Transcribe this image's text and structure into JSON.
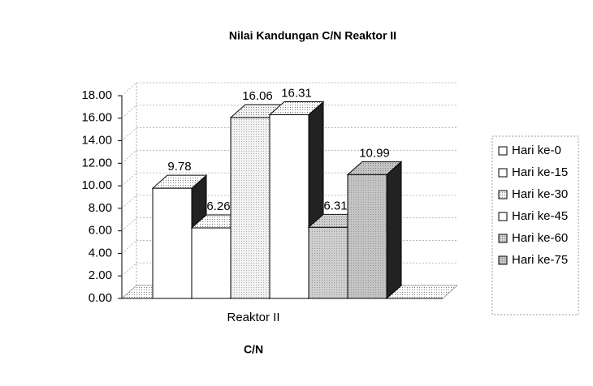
{
  "chart_data": {
    "type": "bar3d",
    "title": "Nilai Kandungan C/N Reaktor II",
    "x_label": "C/N",
    "categories": [
      "Reaktor II"
    ],
    "series": [
      {
        "name": "Hari ke-0",
        "color": "#ffffff",
        "values": [
          9.78
        ]
      },
      {
        "name": "Hari ke-15",
        "color": "#ffffff",
        "values": [
          6.26
        ]
      },
      {
        "name": "Hari ke-30",
        "color": "#f2f2f2",
        "values": [
          16.06
        ]
      },
      {
        "name": "Hari ke-45",
        "color": "#ffffff",
        "values": [
          16.31
        ]
      },
      {
        "name": "Hari ke-60",
        "color": "#cfcfcf",
        "values": [
          6.31
        ]
      },
      {
        "name": "Hari ke-75",
        "color": "#c4c4c4",
        "values": [
          10.99
        ]
      }
    ],
    "ylim": [
      0,
      18
    ],
    "yticks": [
      {
        "value": 0,
        "label": "0.00"
      },
      {
        "value": 2,
        "label": "2.00"
      },
      {
        "value": 4,
        "label": "4.00"
      },
      {
        "value": 6,
        "label": "6.00"
      },
      {
        "value": 8,
        "label": "8.00"
      },
      {
        "value": 10,
        "label": "10.00"
      },
      {
        "value": 12,
        "label": "12.00"
      },
      {
        "value": 14,
        "label": "14.00"
      },
      {
        "value": 16,
        "label": "16.00"
      },
      {
        "value": 18,
        "label": "18.00"
      }
    ],
    "grid": true,
    "legend": "right"
  }
}
